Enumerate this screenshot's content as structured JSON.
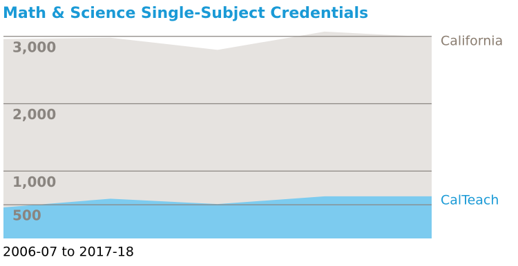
{
  "chart_data": {
    "type": "area",
    "title": "Math & Science Single-Subject Credentials",
    "subtitle": "2006-07 to 2017-18",
    "categories": [
      null,
      null,
      null,
      null,
      null
    ],
    "series": [
      {
        "name": "California",
        "color": "#e6e3e0",
        "label_color": "#8a7d70",
        "values": [
          2960,
          2980,
          2800,
          3070,
          2990
        ]
      },
      {
        "name": "CalTeach",
        "color": "#7ccbef",
        "label_color": "#1a9ad6",
        "values": [
          460,
          590,
          510,
          625,
          625
        ]
      }
    ],
    "ylim": [
      0,
      3100
    ],
    "yticks": [
      500,
      {
        "value": 1000,
        "label": "1,000"
      },
      {
        "value": 2000,
        "label": "2,000"
      },
      {
        "value": 3000,
        "label": "3,000"
      }
    ],
    "grid": true
  }
}
